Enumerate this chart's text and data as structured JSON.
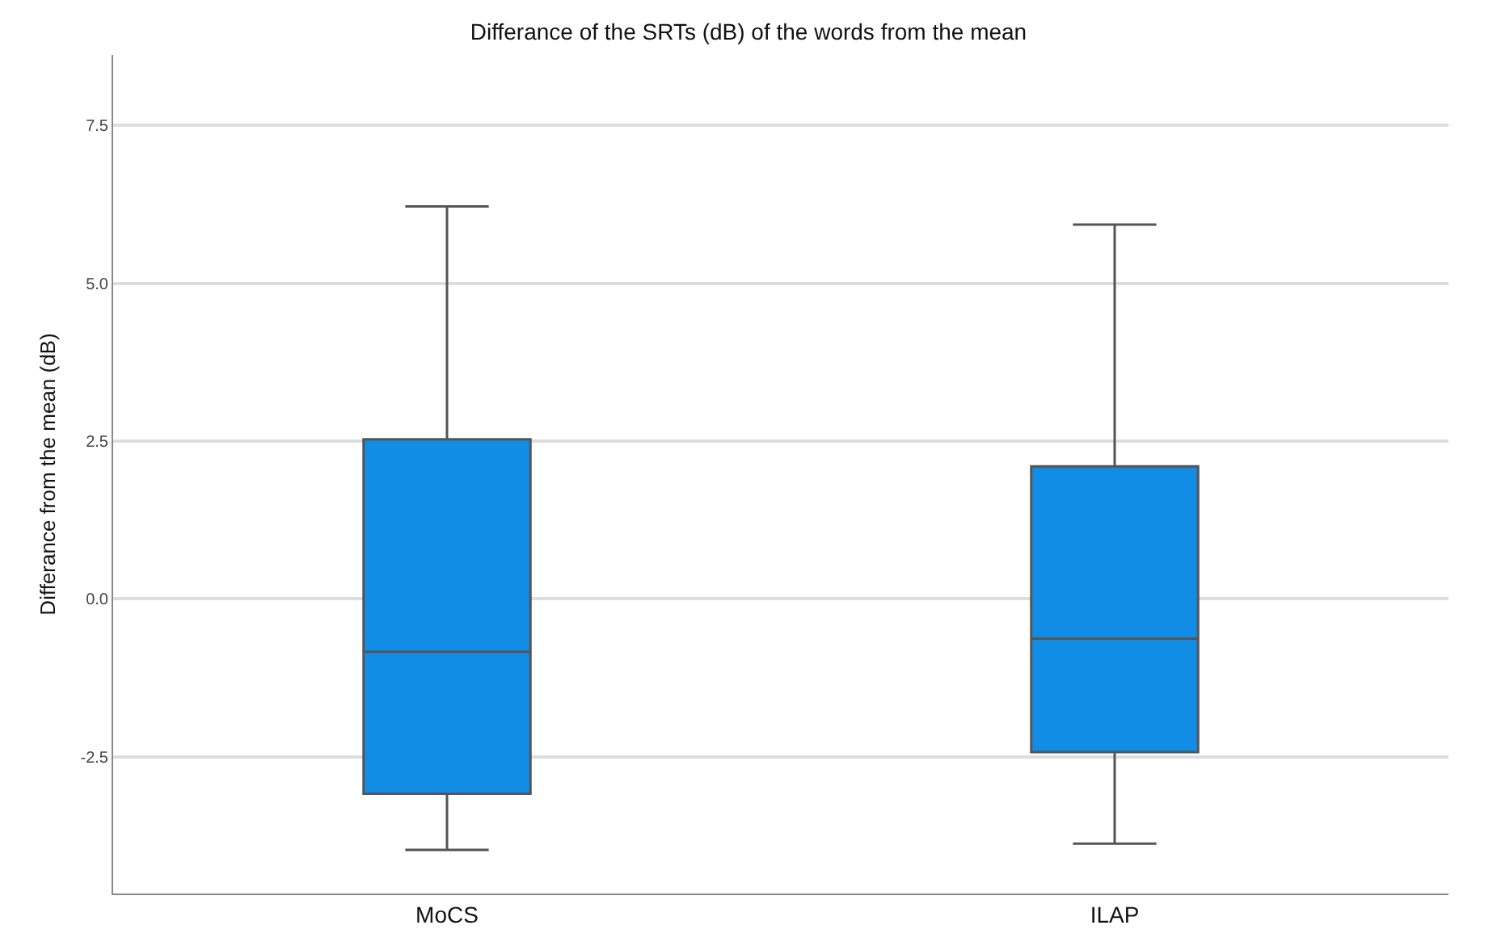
{
  "chart_data": {
    "type": "box",
    "title": "Differance of the SRTs (dB) of the words from the mean",
    "ylabel": "Differance from the mean (dB)",
    "categories": [
      "MoCS",
      "ILAP"
    ],
    "color": "#118de6",
    "boxes": [
      {
        "low": -3.98,
        "q1": -3.09,
        "median": -0.84,
        "q3": 2.53,
        "high": 6.22
      },
      {
        "low": -3.88,
        "q1": -2.43,
        "median": -0.63,
        "q3": 2.1,
        "high": 5.93
      }
    ],
    "ylim": [
      -4.67,
      8.62
    ],
    "yticks": [
      {
        "value": -2.5,
        "label": "-2.5"
      },
      {
        "value": 0,
        "label": "0.0"
      },
      {
        "value": 2.5,
        "label": "2.5"
      },
      {
        "value": 5,
        "label": "5.0"
      },
      {
        "value": 7.5,
        "label": "7.5"
      }
    ],
    "grid": "y"
  }
}
